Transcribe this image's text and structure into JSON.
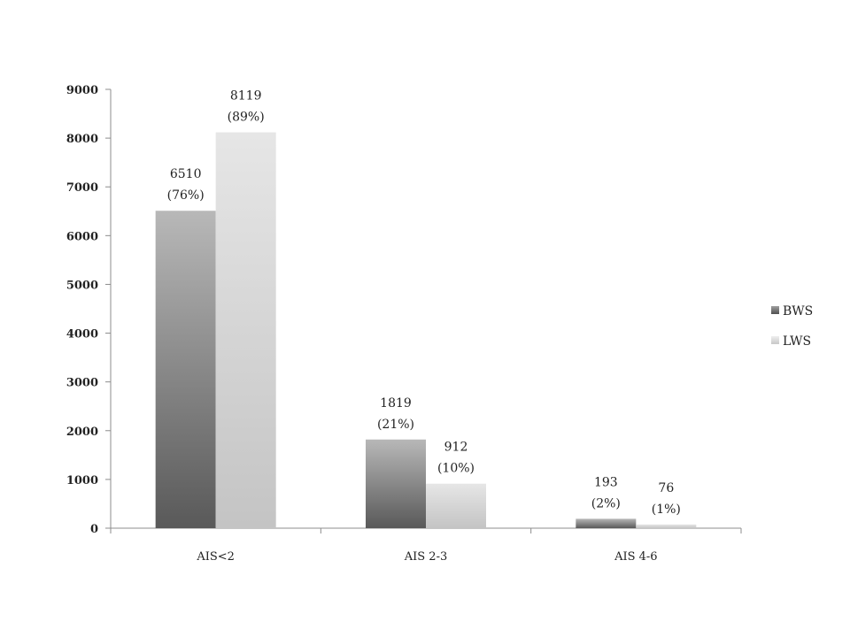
{
  "chart_data": {
    "type": "bar",
    "categories": [
      "AIS<2",
      "AIS 2-3",
      "AIS  4-6"
    ],
    "series": [
      {
        "name": "BWS",
        "values": [
          6510,
          1819,
          193
        ],
        "labels": [
          [
            "6510",
            "(76%)"
          ],
          [
            "1819",
            "(21%)"
          ],
          [
            "193",
            "(2%)"
          ]
        ]
      },
      {
        "name": "LWS",
        "values": [
          8119,
          912,
          76
        ],
        "labels": [
          [
            "8119",
            "(89%)"
          ],
          [
            "912",
            "(10%)"
          ],
          [
            "76",
            "(1%)"
          ]
        ]
      }
    ],
    "yticks": [
      "0",
      "1000",
      "2000",
      "3000",
      "4000",
      "5000",
      "6000",
      "7000",
      "8000",
      "9000"
    ],
    "ylim": [
      0,
      9000
    ],
    "grid": false,
    "legend_position": "right",
    "colors": {
      "BWS_top": "#b8b8b8",
      "BWS_bottom": "#595959",
      "LWS_top": "#e6e6e6",
      "LWS_bottom": "#c4c4c4",
      "axis": "#8c8c8c"
    }
  }
}
